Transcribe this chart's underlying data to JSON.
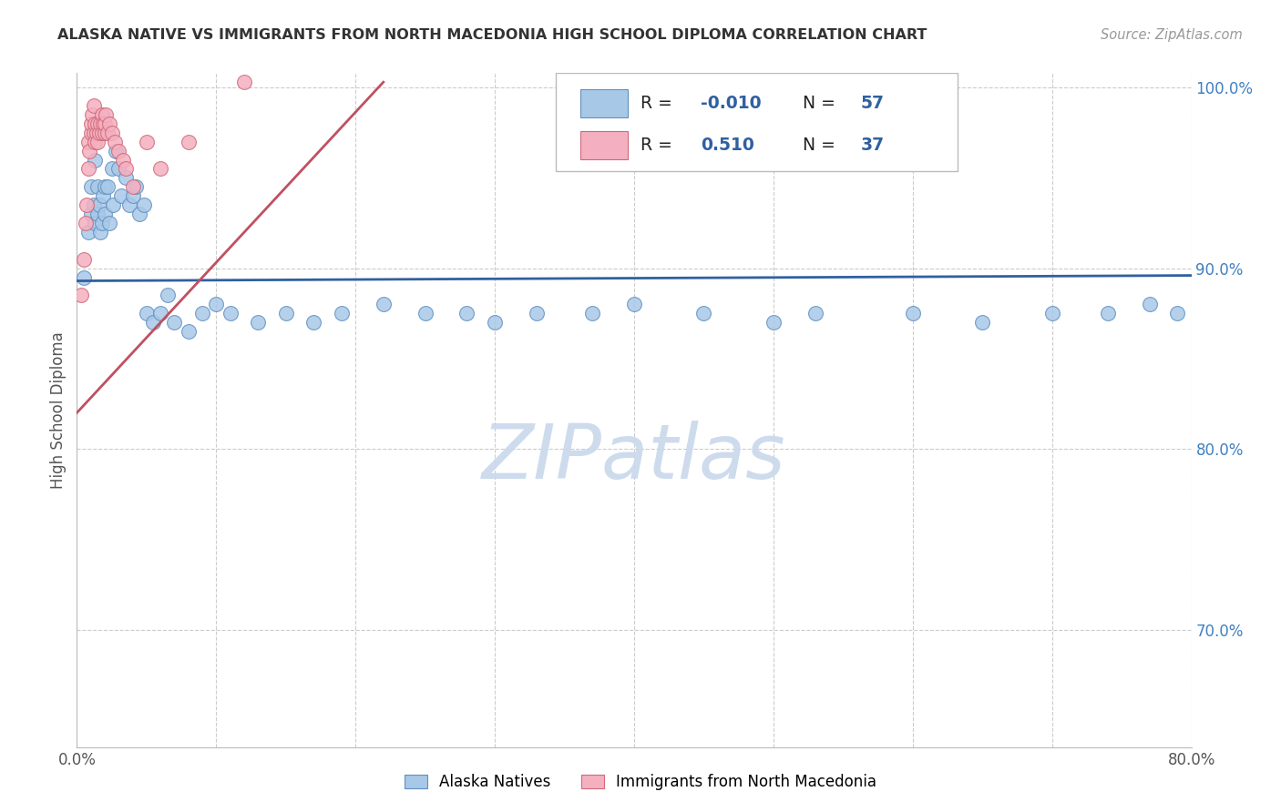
{
  "title": "ALASKA NATIVE VS IMMIGRANTS FROM NORTH MACEDONIA HIGH SCHOOL DIPLOMA CORRELATION CHART",
  "source": "Source: ZipAtlas.com",
  "ylabel": "High School Diploma",
  "xlim": [
    0.0,
    0.8
  ],
  "ylim": [
    0.635,
    1.008
  ],
  "xticks": [
    0.0,
    0.1,
    0.2,
    0.3,
    0.4,
    0.5,
    0.6,
    0.7,
    0.8
  ],
  "xtick_labels": [
    "0.0%",
    "",
    "",
    "",
    "",
    "",
    "",
    "",
    "80.0%"
  ],
  "yticks": [
    0.7,
    0.8,
    0.9,
    1.0
  ],
  "ytick_labels": [
    "70.0%",
    "80.0%",
    "90.0%",
    "100.0%"
  ],
  "legend_blue_R": "-0.010",
  "legend_blue_N": "57",
  "legend_pink_R": "0.510",
  "legend_pink_N": "37",
  "blue_color": "#A8C8E8",
  "pink_color": "#F4B0C0",
  "blue_edge_color": "#6090C0",
  "pink_edge_color": "#D06878",
  "blue_line_color": "#3060A0",
  "pink_line_color": "#C05060",
  "watermark_color": "#C8D8EC",
  "background_color": "#FFFFFF",
  "blue_x": [
    0.005,
    0.008,
    0.01,
    0.01,
    0.012,
    0.013,
    0.013,
    0.015,
    0.015,
    0.016,
    0.017,
    0.018,
    0.019,
    0.02,
    0.02,
    0.022,
    0.023,
    0.025,
    0.026,
    0.028,
    0.03,
    0.032,
    0.035,
    0.038,
    0.04,
    0.042,
    0.045,
    0.048,
    0.05,
    0.055,
    0.06,
    0.065,
    0.07,
    0.08,
    0.09,
    0.1,
    0.11,
    0.13,
    0.15,
    0.17,
    0.19,
    0.22,
    0.25,
    0.28,
    0.3,
    0.33,
    0.37,
    0.4,
    0.45,
    0.5,
    0.53,
    0.6,
    0.65,
    0.7,
    0.74,
    0.77,
    0.79
  ],
  "blue_y": [
    0.895,
    0.92,
    0.93,
    0.945,
    0.935,
    0.925,
    0.96,
    0.93,
    0.945,
    0.935,
    0.92,
    0.925,
    0.94,
    0.93,
    0.945,
    0.945,
    0.925,
    0.955,
    0.935,
    0.965,
    0.955,
    0.94,
    0.95,
    0.935,
    0.94,
    0.945,
    0.93,
    0.935,
    0.875,
    0.87,
    0.875,
    0.885,
    0.87,
    0.865,
    0.875,
    0.88,
    0.875,
    0.87,
    0.875,
    0.87,
    0.875,
    0.88,
    0.875,
    0.875,
    0.87,
    0.875,
    0.875,
    0.88,
    0.875,
    0.87,
    0.875,
    0.875,
    0.87,
    0.875,
    0.875,
    0.88,
    0.875
  ],
  "pink_x": [
    0.003,
    0.005,
    0.006,
    0.007,
    0.008,
    0.008,
    0.009,
    0.01,
    0.01,
    0.011,
    0.012,
    0.012,
    0.013,
    0.013,
    0.014,
    0.015,
    0.015,
    0.016,
    0.017,
    0.018,
    0.018,
    0.019,
    0.02,
    0.02,
    0.021,
    0.022,
    0.023,
    0.025,
    0.027,
    0.03,
    0.033,
    0.035,
    0.04,
    0.05,
    0.06,
    0.08,
    0.12
  ],
  "pink_y": [
    0.885,
    0.905,
    0.925,
    0.935,
    0.955,
    0.97,
    0.965,
    0.975,
    0.98,
    0.985,
    0.975,
    0.99,
    0.97,
    0.98,
    0.975,
    0.97,
    0.98,
    0.975,
    0.98,
    0.975,
    0.985,
    0.98,
    0.975,
    0.98,
    0.985,
    0.975,
    0.98,
    0.975,
    0.97,
    0.965,
    0.96,
    0.955,
    0.945,
    0.97,
    0.955,
    0.97,
    1.003
  ],
  "blue_line_y_at_0": 0.893,
  "blue_line_y_at_80": 0.896,
  "pink_line_x0": 0.0,
  "pink_line_y0": 0.82,
  "pink_line_x1": 0.22,
  "pink_line_y1": 1.003
}
